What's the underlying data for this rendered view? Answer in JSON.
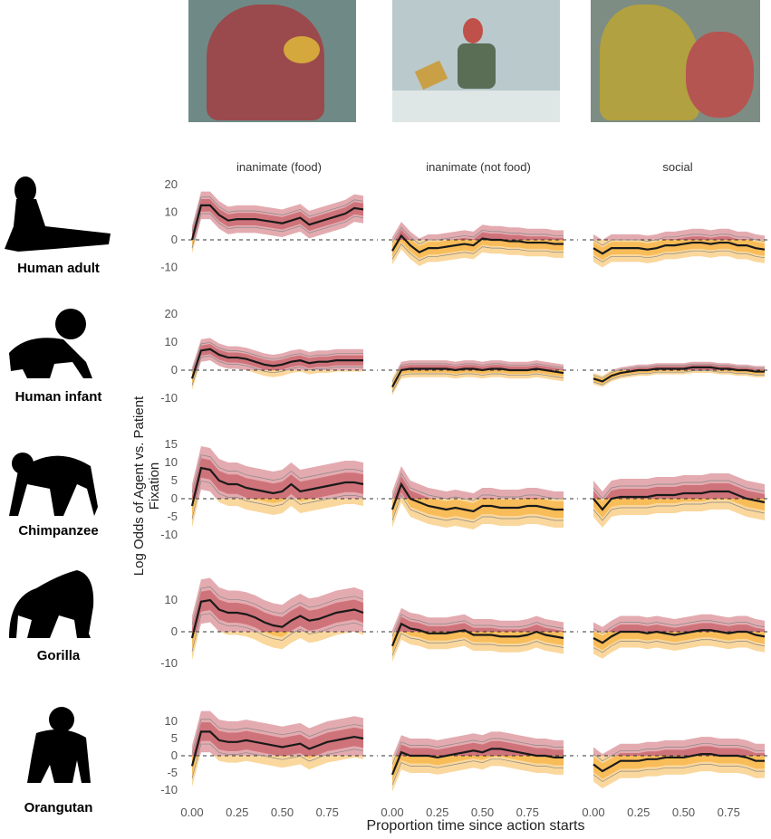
{
  "facets": [
    "inanimate (food)",
    "inanimate (not food)",
    "social"
  ],
  "animals": [
    "Human adult",
    "Human infant",
    "Chimpanzee",
    "Gorilla",
    "Orangutan"
  ],
  "photos": [
    "gorilla-eating-photo",
    "woman-reading-photo",
    "orangutan-social-photo"
  ],
  "colors": {
    "agent": "#c0454f",
    "patient": "#f5a623",
    "mean": "#1a1a1a",
    "zero_line": "#333333"
  },
  "chart_data": {
    "type": "line",
    "xlabel": "Proportion time since action starts",
    "ylabel": "Log Odds of Agent vs. Patient Fixation",
    "x": [
      0,
      0.05,
      0.1,
      0.15,
      0.2,
      0.25,
      0.3,
      0.35,
      0.4,
      0.45,
      0.5,
      0.55,
      0.6,
      0.65,
      0.7,
      0.75,
      0.8,
      0.85,
      0.9,
      0.95
    ],
    "xticks": [
      "0.00",
      "0.25",
      "0.50",
      "0.75"
    ],
    "xtick_values": [
      0,
      0.25,
      0.5,
      0.75
    ],
    "reference_line": 0,
    "rows": [
      {
        "animal": "Human adult",
        "yticks": [
          20,
          10,
          0,
          -10
        ],
        "panels": [
          {
            "facet": "inanimate (food)",
            "ci": 5,
            "mean": [
              0,
              12.5,
              12.5,
              9,
              7,
              7.5,
              7.5,
              7.5,
              7,
              6.5,
              6,
              7,
              8,
              5.5,
              6.5,
              7.5,
              8.5,
              9.5,
              11.5,
              11
            ]
          },
          {
            "facet": "inanimate (not food)",
            "ci": 5,
            "mean": [
              -4,
              1.5,
              -2,
              -4.5,
              -3,
              -3,
              -2.5,
              -2,
              -1.5,
              -2,
              0.5,
              0,
              0,
              -0.5,
              -0.5,
              -1,
              -1,
              -1,
              -1.5,
              -1.5
            ]
          },
          {
            "facet": "social",
            "ci": 5,
            "mean": [
              -3,
              -5,
              -3,
              -3,
              -3,
              -3,
              -3.5,
              -3,
              -2,
              -2,
              -1.5,
              -1,
              -1,
              -1.5,
              -1,
              -1,
              -2,
              -2,
              -3,
              -3.5
            ]
          }
        ]
      },
      {
        "animal": "Human infant",
        "yticks": [
          20,
          10,
          0,
          -10
        ],
        "panels": [
          {
            "facet": "inanimate (food)",
            "ci": 4,
            "mean": [
              -3,
              7,
              7.5,
              5.5,
              4.5,
              4.5,
              4,
              3,
              2,
              1.5,
              2,
              3,
              3.5,
              2.5,
              3,
              3,
              3.5,
              3.5,
              3.5,
              3.5
            ]
          },
          {
            "facet": "inanimate (not food)",
            "ci": 3,
            "mean": [
              -6,
              0,
              0.5,
              0.5,
              0.5,
              0.5,
              0.5,
              0,
              0.5,
              0.5,
              0,
              0.5,
              0.5,
              0,
              0,
              0,
              0.5,
              0,
              -0.5,
              -1
            ]
          },
          {
            "facet": "social",
            "ci": 2,
            "mean": [
              -3,
              -4,
              -2,
              -1,
              -0.5,
              0,
              0,
              0.5,
              0.5,
              0.5,
              0.5,
              1,
              1,
              1,
              0.5,
              0.5,
              0,
              0,
              -0.5,
              -0.5
            ]
          }
        ]
      },
      {
        "animal": "Chimpanzee",
        "yticks": [
          15,
          10,
          5,
          0,
          -5,
          -10
        ],
        "panels": [
          {
            "facet": "inanimate (food)",
            "ci": 6,
            "mean": [
              -2,
              8.5,
              8,
              5,
              4,
              4,
              3,
              2.5,
              2,
              1.5,
              2,
              4,
              2,
              2.5,
              3,
              3.5,
              4,
              4.5,
              4.5,
              4
            ]
          },
          {
            "facet": "inanimate (not food)",
            "ci": 5,
            "mean": [
              -3,
              4,
              0,
              -1,
              -2,
              -2.5,
              -3,
              -2.5,
              -3,
              -3.5,
              -2,
              -2,
              -2.5,
              -2.5,
              -2.5,
              -2,
              -2,
              -2.5,
              -3,
              -3
            ]
          },
          {
            "facet": "social",
            "ci": 5,
            "mean": [
              0,
              -3,
              0,
              0.5,
              0.5,
              0.5,
              0.5,
              1,
              1,
              1,
              1.5,
              1.5,
              1.5,
              2,
              2,
              2,
              1,
              0,
              -0.5,
              -1
            ]
          }
        ]
      },
      {
        "animal": "Gorilla",
        "yticks": [
          10,
          0,
          -10
        ],
        "panels": [
          {
            "facet": "inanimate (food)",
            "ci": 7,
            "mean": [
              -2,
              9.5,
              10,
              7,
              6,
              6,
              5.5,
              4.5,
              3,
              2,
              1.5,
              3.5,
              5,
              3.5,
              4,
              5,
              6,
              6.5,
              7,
              6
            ]
          },
          {
            "facet": "inanimate (not food)",
            "ci": 5,
            "mean": [
              -4.5,
              2.5,
              1,
              0.5,
              -0.5,
              -0.5,
              -0.5,
              0,
              0.5,
              -1,
              -1,
              -1,
              -1.5,
              -1.5,
              -1.5,
              -1,
              0,
              -1,
              -1.5,
              -2
            ]
          },
          {
            "facet": "social",
            "ci": 5,
            "mean": [
              -2,
              -3.5,
              -1.5,
              0,
              0,
              0,
              -0.5,
              0,
              -0.5,
              -1,
              -0.5,
              0,
              0.5,
              0.5,
              0,
              -0.5,
              0,
              0,
              -1,
              -1.5
            ]
          }
        ]
      },
      {
        "animal": "Orangutan",
        "yticks": [
          10,
          5,
          0,
          -5,
          -10
        ],
        "panels": [
          {
            "facet": "inanimate (food)",
            "ci": 6,
            "mean": [
              -3,
              7,
              7,
              4.5,
              4,
              4,
              4.5,
              4,
              3.5,
              3,
              2.5,
              3,
              3.5,
              2,
              3,
              4,
              4.5,
              5,
              5.5,
              5
            ]
          },
          {
            "facet": "inanimate (not food)",
            "ci": 5,
            "mean": [
              -5.5,
              1,
              0,
              0,
              0,
              -0.5,
              0,
              0.5,
              1,
              1.5,
              1,
              2,
              2,
              1.5,
              1,
              0.5,
              0,
              0,
              -0.5,
              -0.5
            ]
          },
          {
            "facet": "social",
            "ci": 5,
            "mean": [
              -2.5,
              -4.5,
              -3,
              -1.5,
              -1.5,
              -1.5,
              -1,
              -1,
              -0.5,
              -0.5,
              -0.5,
              0,
              0.5,
              0.5,
              0,
              0,
              0,
              -0.5,
              -1.5,
              -1.5
            ]
          }
        ]
      }
    ]
  }
}
